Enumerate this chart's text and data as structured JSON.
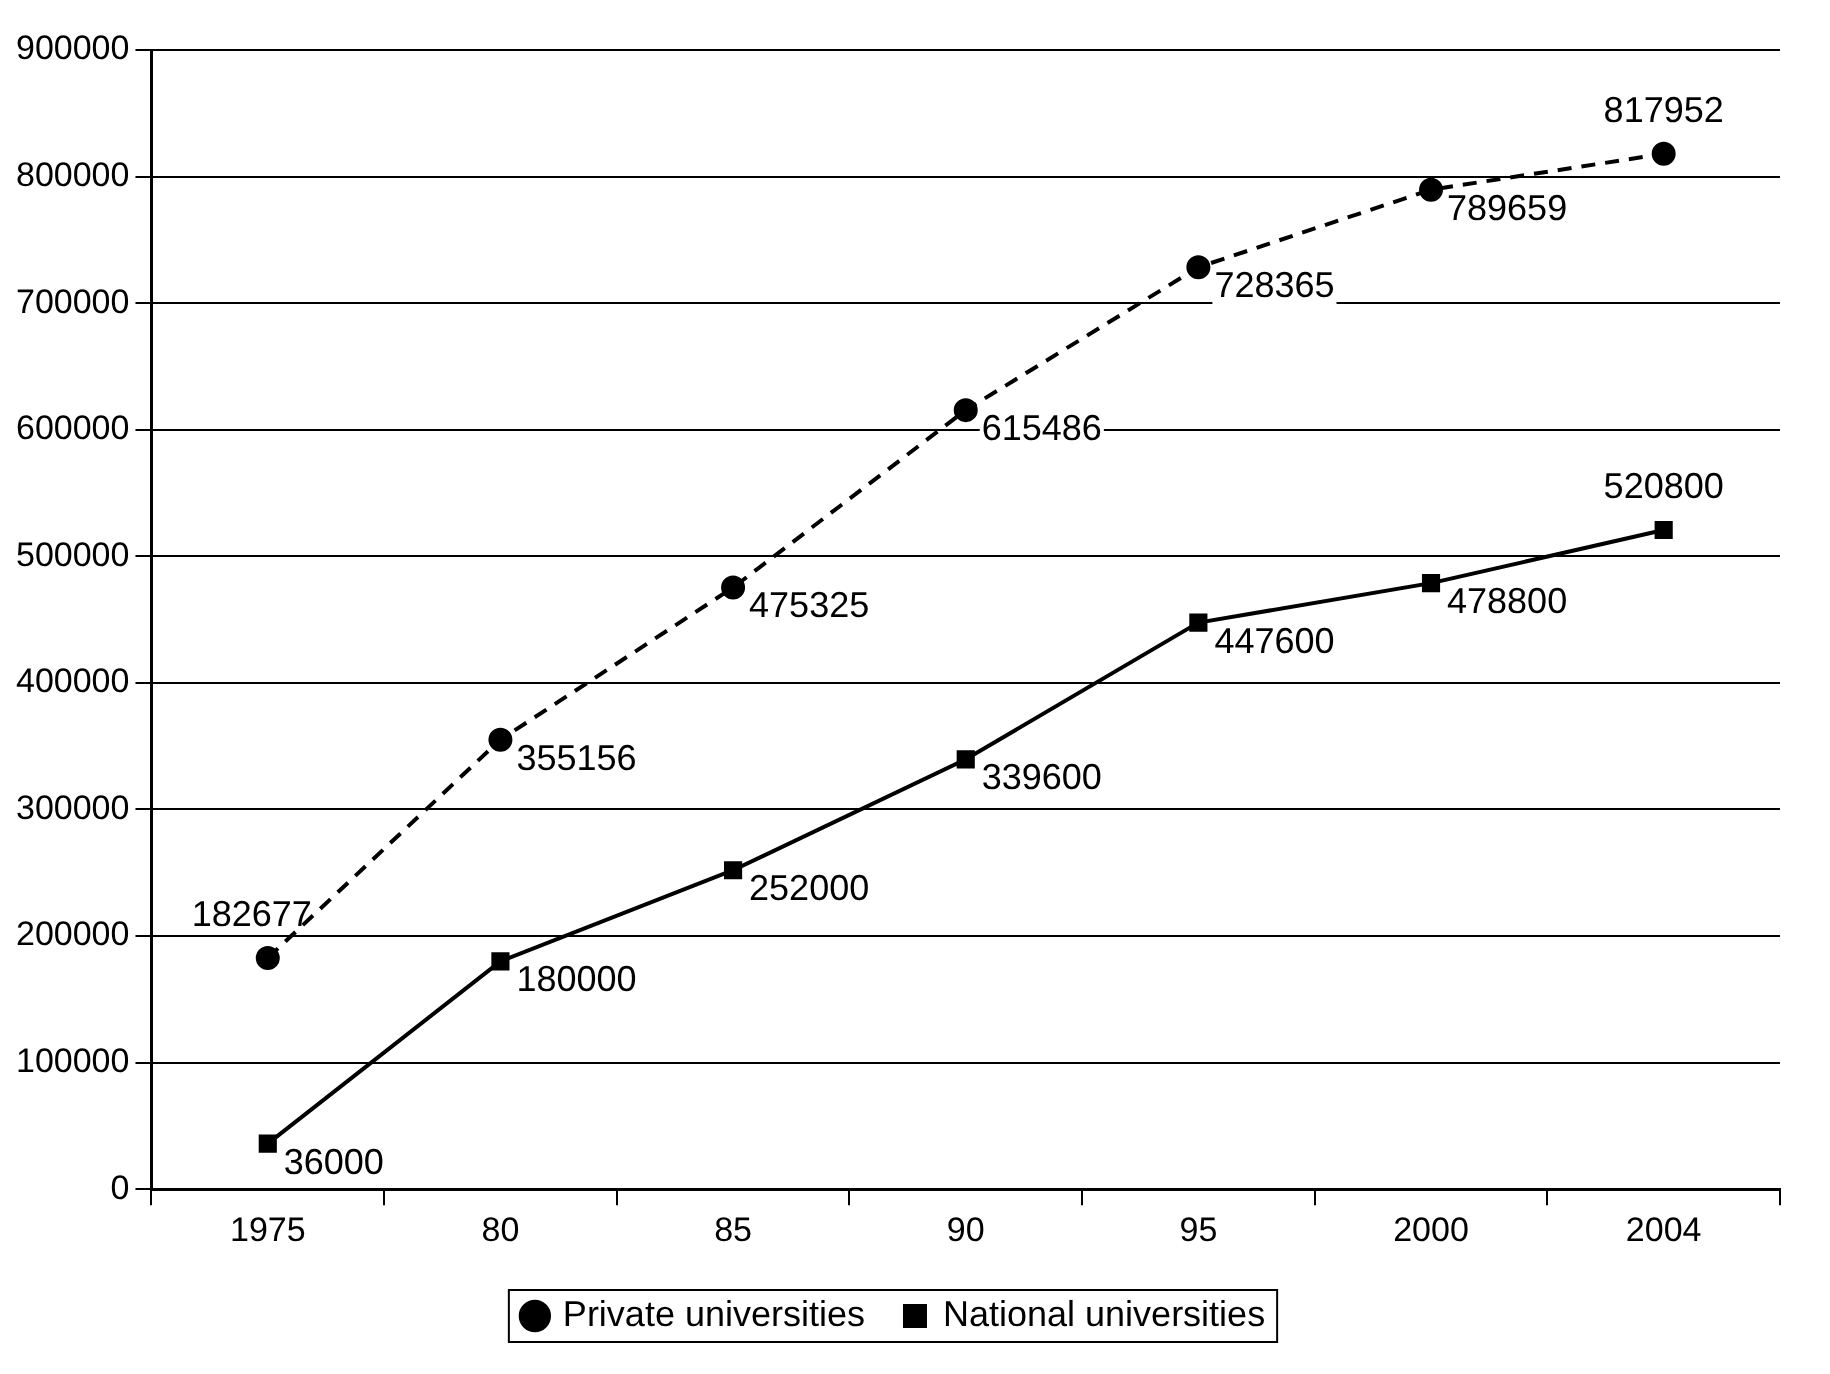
{
  "chart_data": {
    "type": "line",
    "categories": [
      "1975",
      "80",
      "85",
      "90",
      "95",
      "2000",
      "2004"
    ],
    "series": [
      {
        "name": "Private universities",
        "color": "#000000",
        "marker": "circle",
        "line_style": "dashed",
        "values": [
          182677,
          355156,
          475325,
          615486,
          728365,
          789659,
          817952
        ]
      },
      {
        "name": "National universities",
        "color": "#000000",
        "marker": "square",
        "line_style": "solid",
        "values": [
          36000,
          180000,
          252000,
          339600,
          447600,
          478800,
          520800
        ]
      }
    ],
    "ylim": [
      0,
      900000
    ],
    "yticks": [
      0,
      100000,
      200000,
      300000,
      400000,
      500000,
      600000,
      700000,
      800000,
      900000
    ],
    "grid": "y",
    "legend": "bottom",
    "data_labels": true
  }
}
